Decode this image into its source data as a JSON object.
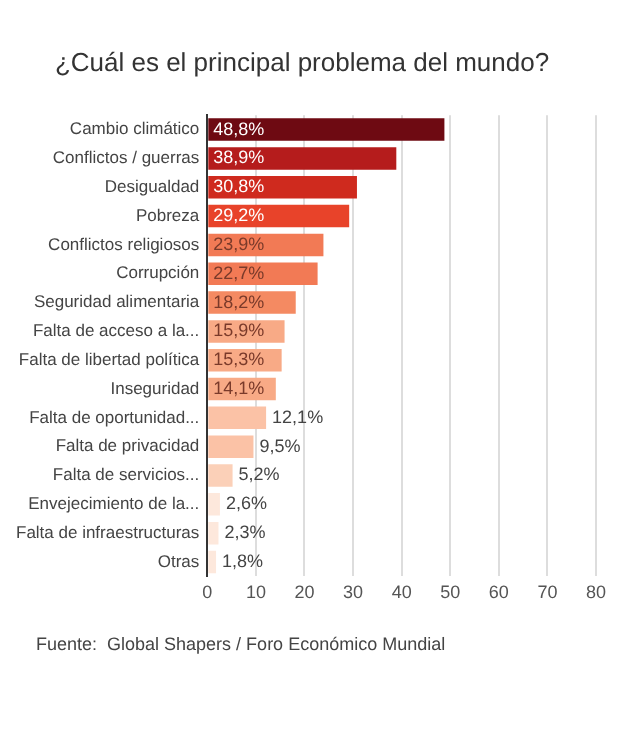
{
  "chart_data": {
    "type": "bar",
    "orientation": "horizontal",
    "title": "¿Cuál es el principal problema del mundo?",
    "categories": [
      "Cambio climático",
      "Conflictos / guerras",
      "Desigualdad",
      "Pobreza",
      "Conflictos religiosos",
      "Corrupción",
      "Seguridad alimentaria",
      "Falta de acceso a la...",
      "Falta de libertad política",
      "Inseguridad",
      "Falta de oportunidad...",
      "Falta de privacidad",
      "Falta de servicios...",
      "Envejecimiento de la...",
      "Falta de infraestructuras",
      "Otras"
    ],
    "values": [
      48.8,
      38.9,
      30.8,
      29.2,
      23.9,
      22.7,
      18.2,
      15.9,
      15.3,
      14.1,
      12.1,
      9.5,
      5.2,
      2.6,
      2.3,
      1.8
    ],
    "value_labels": [
      "48,8%",
      "38,9%",
      "30,8%",
      "29,2%",
      "23,9%",
      "22,7%",
      "18,2%",
      "15,9%",
      "15,3%",
      "14,1%",
      "12,1%",
      "9,5%",
      "5,2%",
      "2,6%",
      "2,3%",
      "1,8%"
    ],
    "colors": [
      "#6e0a12",
      "#b51c1c",
      "#cf2a1e",
      "#e8432a",
      "#f27a55",
      "#f27a55",
      "#f48a62",
      "#f8aa86",
      "#f8aa86",
      "#f8aa86",
      "#fbc2a6",
      "#fbc2a6",
      "#fbd0b8",
      "#fde8dc",
      "#fde8dc",
      "#fde8dc"
    ],
    "xlim": [
      0,
      80
    ],
    "xticks": [
      0,
      10,
      20,
      30,
      40,
      50,
      60,
      70,
      80
    ],
    "grid": "x",
    "annotations": [
      "Fuente:  Global Shapers / Foro Económico Mundial"
    ]
  }
}
